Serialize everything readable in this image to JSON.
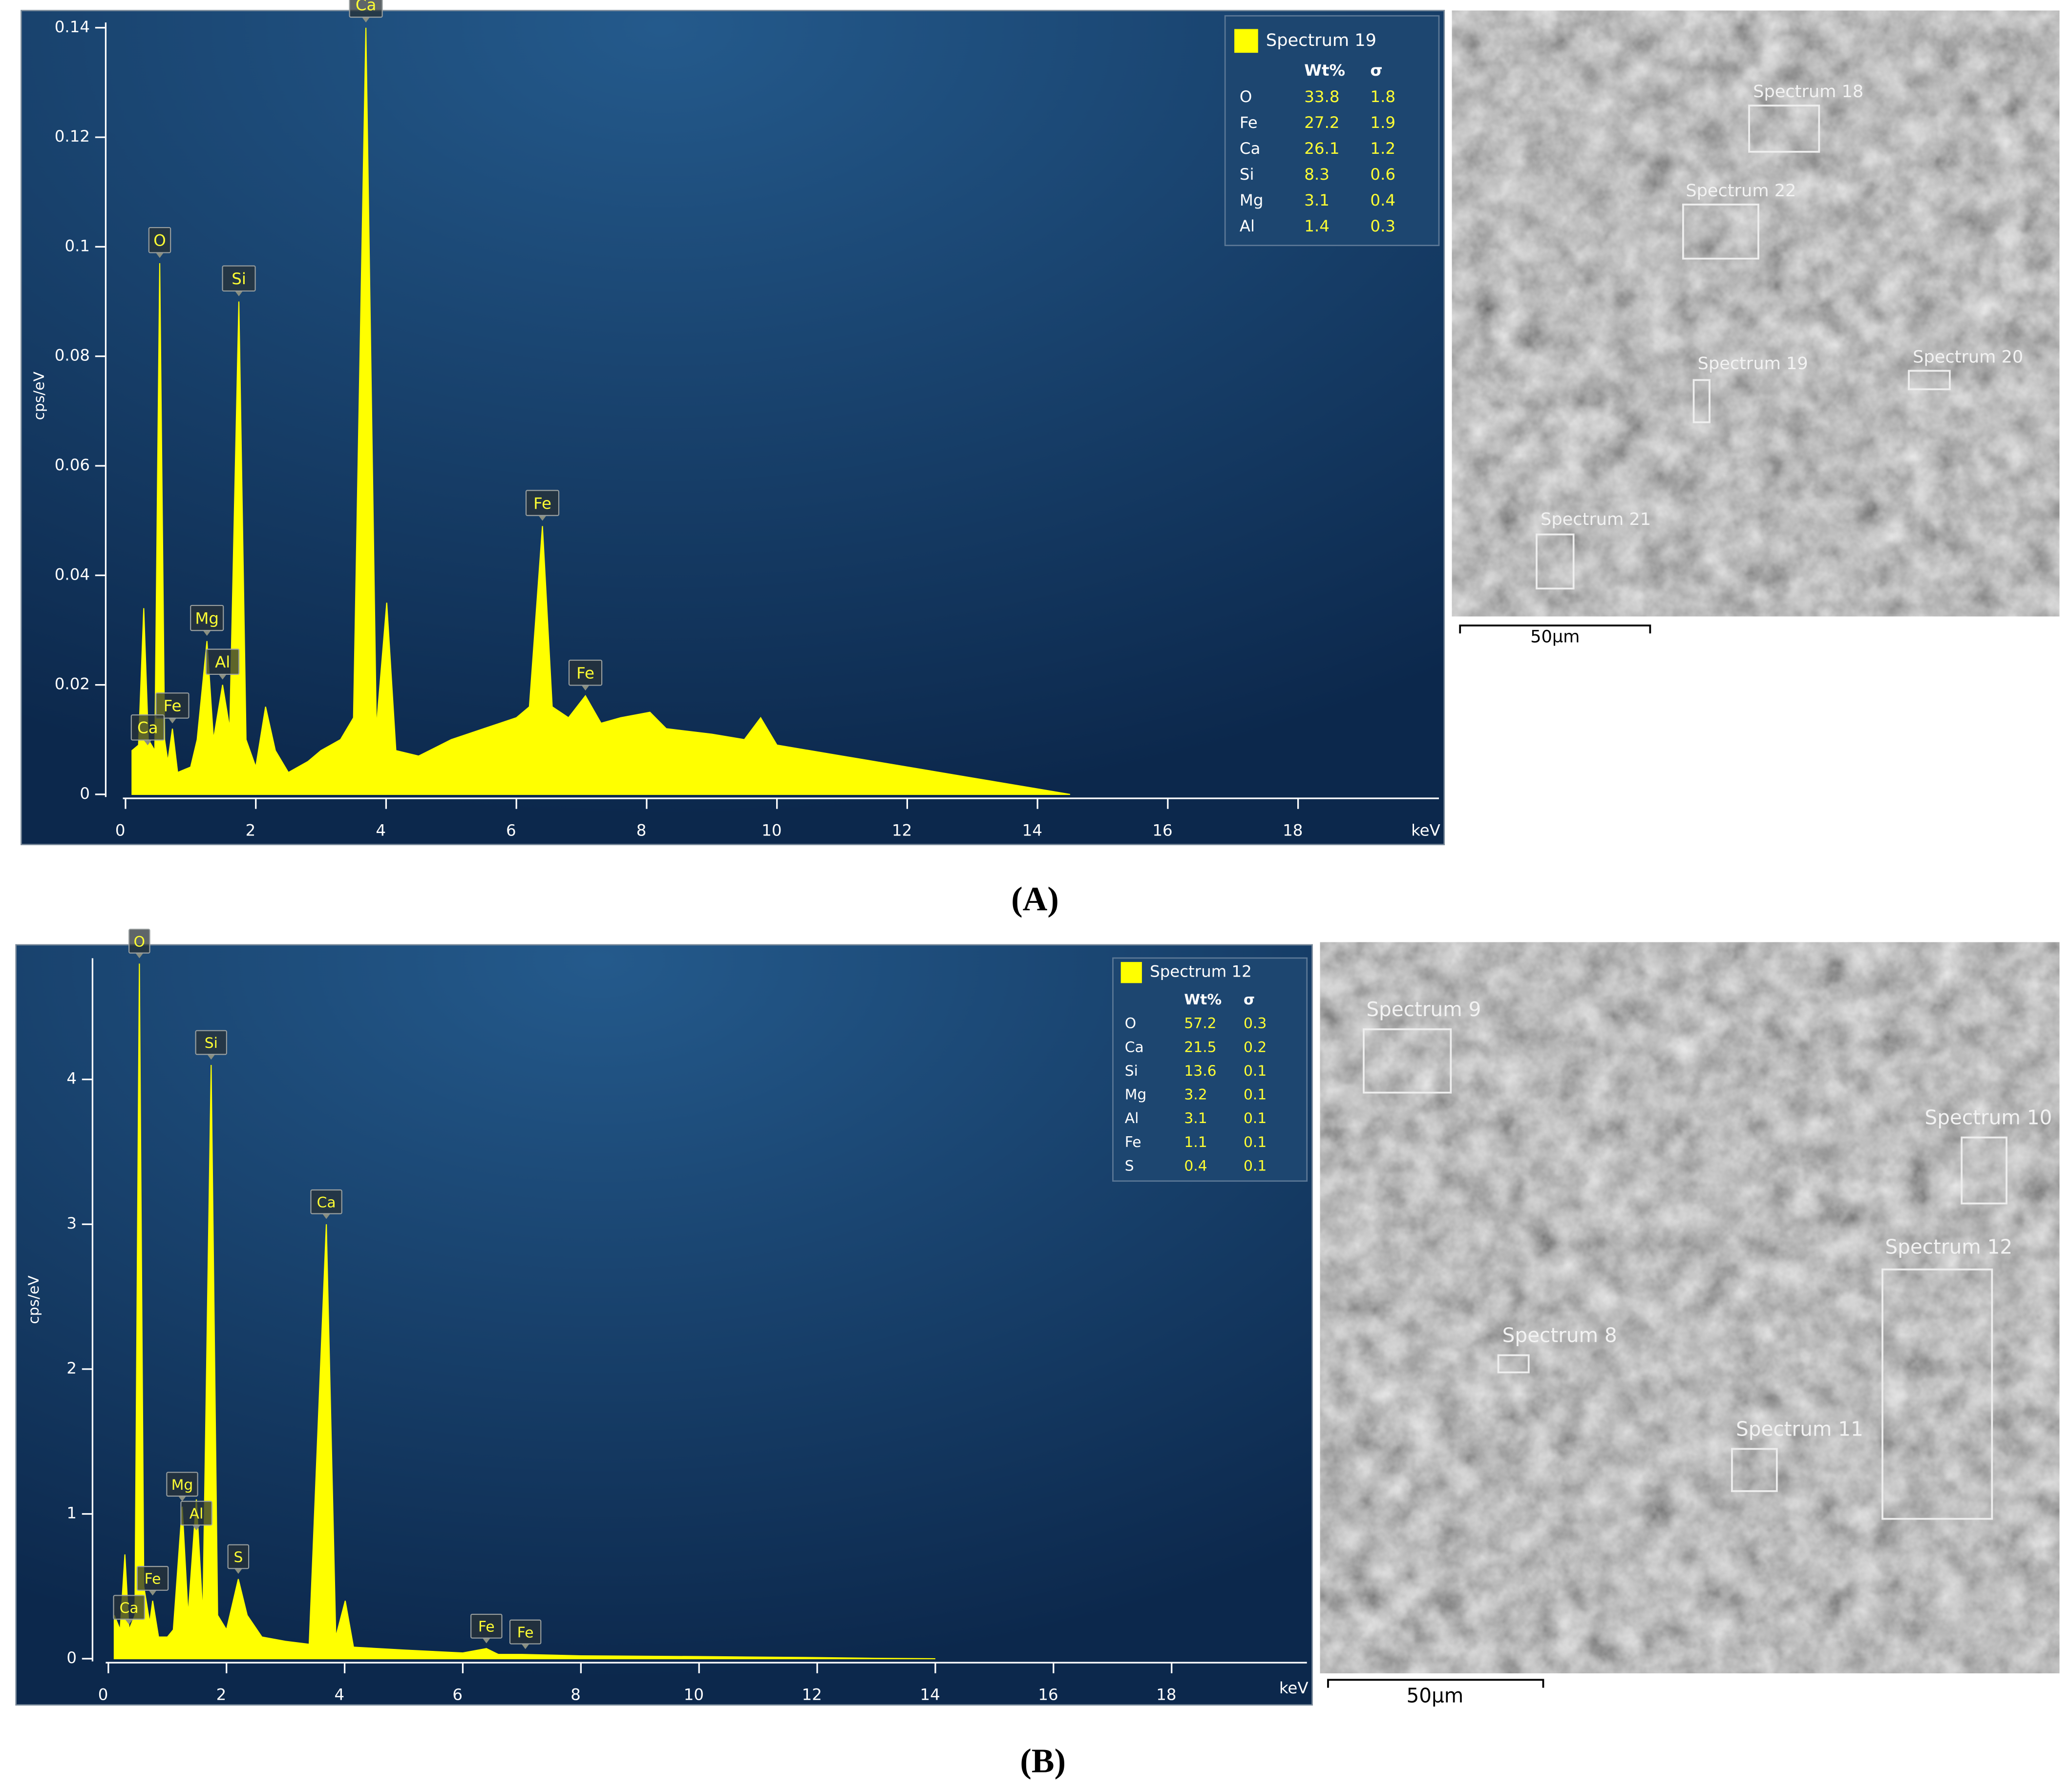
{
  "chart_data": [
    {
      "type": "area",
      "panel_label": "(A)",
      "y_label": "cps/eV",
      "x_unit": "keV",
      "xlim": [
        0,
        20
      ],
      "ylim": [
        0,
        0.14
      ],
      "xticks": [
        0,
        2,
        4,
        6,
        8,
        10,
        12,
        14,
        16,
        18
      ],
      "yticks": [
        0,
        0.02,
        0.04,
        0.06,
        0.08,
        0.1,
        0.12,
        0.14
      ],
      "x": [
        0.1,
        0.2,
        0.28,
        0.35,
        0.45,
        0.525,
        0.6,
        0.65,
        0.72,
        0.8,
        1.0,
        1.1,
        1.25,
        1.35,
        1.49,
        1.6,
        1.74,
        1.85,
        2.0,
        2.15,
        2.3,
        2.5,
        2.8,
        3.0,
        3.3,
        3.5,
        3.69,
        3.85,
        4.01,
        4.15,
        4.5,
        5.0,
        5.5,
        6.0,
        6.2,
        6.4,
        6.55,
        6.8,
        7.06,
        7.3,
        7.6,
        8.05,
        8.3,
        9.0,
        9.5,
        9.75,
        10.0,
        11.0,
        12.0,
        13.0,
        14.0,
        14.5
      ],
      "series": [
        {
          "name": "Spectrum 19",
          "color": "#ffff00",
          "values": [
            0.008,
            0.009,
            0.034,
            0.01,
            0.008,
            0.097,
            0.01,
            0.006,
            0.012,
            0.004,
            0.005,
            0.01,
            0.028,
            0.01,
            0.02,
            0.012,
            0.09,
            0.01,
            0.005,
            0.016,
            0.008,
            0.004,
            0.006,
            0.008,
            0.01,
            0.014,
            0.14,
            0.012,
            0.035,
            0.008,
            0.007,
            0.01,
            0.012,
            0.014,
            0.016,
            0.049,
            0.016,
            0.014,
            0.018,
            0.013,
            0.014,
            0.015,
            0.012,
            0.011,
            0.01,
            0.014,
            0.009,
            0.007,
            0.005,
            0.003,
            0.001,
            0
          ]
        }
      ],
      "annotations": [
        {
          "label": "Ca",
          "x": 3.69,
          "y": 0.14
        },
        {
          "label": "O",
          "x": 0.525,
          "y": 0.097
        },
        {
          "label": "Si",
          "x": 1.74,
          "y": 0.09
        },
        {
          "label": "Fe",
          "x": 6.4,
          "y": 0.049
        },
        {
          "label": "Fe",
          "x": 7.06,
          "y": 0.018
        },
        {
          "label": "Mg",
          "x": 1.25,
          "y": 0.028
        },
        {
          "label": "Al",
          "x": 1.49,
          "y": 0.02
        },
        {
          "label": "Fe",
          "x": 0.72,
          "y": 0.012
        },
        {
          "label": "Ca",
          "x": 0.34,
          "y": 0.008
        }
      ],
      "legend_table": {
        "headers": [
          "Wt%",
          "σ"
        ],
        "rows": [
          [
            "O",
            33.8,
            1.8
          ],
          [
            "Fe",
            27.2,
            1.9
          ],
          [
            "Ca",
            26.1,
            1.2
          ],
          [
            "Si",
            8.3,
            0.6
          ],
          [
            "Mg",
            3.1,
            0.4
          ],
          [
            "Al",
            1.4,
            0.3
          ]
        ]
      }
    },
    {
      "type": "area",
      "panel_label": "(B)",
      "y_label": "cps/eV",
      "x_unit": "keV",
      "xlim": [
        0,
        20
      ],
      "ylim": [
        0,
        4.8
      ],
      "xticks": [
        0,
        2,
        4,
        6,
        8,
        10,
        12,
        14,
        16,
        18
      ],
      "yticks": [
        0,
        1,
        2,
        3,
        4
      ],
      "x": [
        0.1,
        0.2,
        0.28,
        0.35,
        0.45,
        0.525,
        0.6,
        0.7,
        0.75,
        0.85,
        1.0,
        1.1,
        1.25,
        1.35,
        1.49,
        1.6,
        1.74,
        1.85,
        2.0,
        2.2,
        2.35,
        2.6,
        3.0,
        3.4,
        3.69,
        3.85,
        4.01,
        4.15,
        5.0,
        6.0,
        6.4,
        6.6,
        7.0,
        8.0,
        10.0,
        12.0,
        13.0,
        14.0
      ],
      "series": [
        {
          "name": "Spectrum 12",
          "color": "#ffff00",
          "values": [
            0.3,
            0.2,
            0.72,
            0.2,
            0.3,
            4.8,
            0.5,
            0.25,
            0.4,
            0.15,
            0.15,
            0.2,
            1.05,
            0.3,
            1.1,
            0.3,
            4.1,
            0.3,
            0.2,
            0.55,
            0.3,
            0.15,
            0.12,
            0.1,
            3.0,
            0.15,
            0.4,
            0.08,
            0.06,
            0.04,
            0.07,
            0.03,
            0.03,
            0.02,
            0.015,
            0.008,
            0.003,
            0
          ]
        }
      ],
      "annotations": [
        {
          "label": "O",
          "x": 0.525,
          "y": 4.8
        },
        {
          "label": "Si",
          "x": 1.74,
          "y": 4.1
        },
        {
          "label": "Ca",
          "x": 3.69,
          "y": 3.0
        },
        {
          "label": "Mg",
          "x": 1.25,
          "y": 1.05
        },
        {
          "label": "Al",
          "x": 1.49,
          "y": 0.85
        },
        {
          "label": "S",
          "x": 2.2,
          "y": 0.55
        },
        {
          "label": "Fe",
          "x": 0.75,
          "y": 0.4
        },
        {
          "label": "Ca",
          "x": 0.35,
          "y": 0.2
        },
        {
          "label": "Fe",
          "x": 6.4,
          "y": 0.07
        },
        {
          "label": "Fe",
          "x": 7.06,
          "y": 0.03
        }
      ],
      "legend_table": {
        "headers": [
          "Wt%",
          "σ"
        ],
        "rows": [
          [
            "O",
            57.2,
            0.3
          ],
          [
            "Ca",
            21.5,
            0.2
          ],
          [
            "Si",
            13.6,
            0.1
          ],
          [
            "Mg",
            3.2,
            0.1
          ],
          [
            "Al",
            3.1,
            0.1
          ],
          [
            "Fe",
            1.1,
            0.1
          ],
          [
            "S",
            0.4,
            0.1
          ]
        ]
      }
    }
  ],
  "images": [
    {
      "scale_bar": "50µm",
      "regions": [
        "Spectrum 18",
        "Spectrum 22",
        "Spectrum 19",
        "Spectrum 20",
        "Spectrum 21"
      ]
    },
    {
      "scale_bar": "50µm",
      "regions": [
        "Spectrum 9",
        "Spectrum 10",
        "Spectrum 12",
        "Spectrum 8",
        "Spectrum 11"
      ]
    }
  ]
}
